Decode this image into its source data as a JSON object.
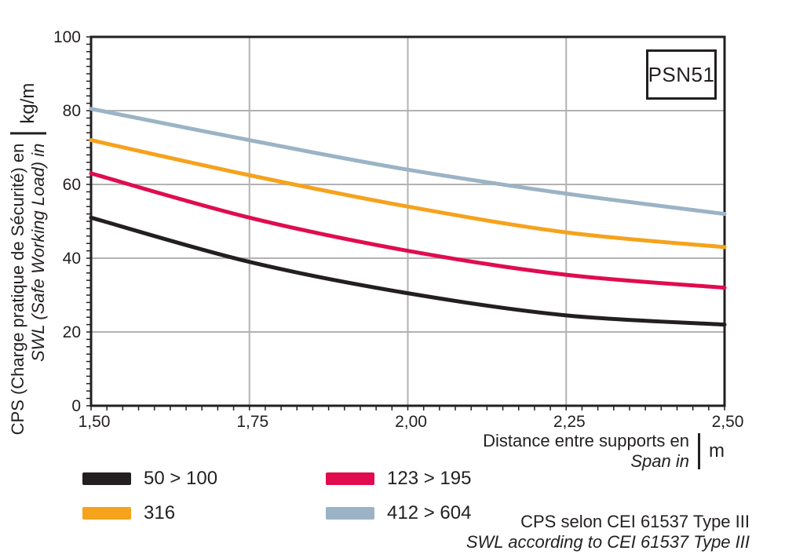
{
  "title_box": {
    "label": "PSN51"
  },
  "axis": {
    "y_label_fr": "CPS (Charge pratique de Sécurité) en",
    "y_label_en": "SWL (Safe Working Load) in",
    "y_unit": "kg/m",
    "x_label_fr": "Distance entre supports en",
    "x_label_en": "Span in",
    "x_unit": "m"
  },
  "footer": {
    "line_fr": "CPS selon CEI 61537 Type III",
    "line_en": "SWL according to CEI 61537 Type III"
  },
  "colors": {
    "axis": "#231f20",
    "grid": "#b2b2b2",
    "text": "#231f20",
    "background": "#ffffff"
  },
  "chart_data": {
    "type": "line",
    "title": "PSN51",
    "xlabel": "Distance entre supports en / Span in (m)",
    "ylabel": "CPS (Charge pratique de Sécurité) en / SWL (Safe Working Load) in (kg/m)",
    "x": [
      1.5,
      1.75,
      2.0,
      2.25,
      2.5
    ],
    "xlim": [
      1.5,
      2.5
    ],
    "ylim": [
      0,
      100
    ],
    "x_tick_labels": [
      "1,50",
      "1,75",
      "2,00",
      "2,25",
      "2,50"
    ],
    "y_tick_values": [
      0,
      20,
      40,
      60,
      80,
      100
    ],
    "x_minor_step": 0.025,
    "y_minor_step": 2,
    "grid_x": [
      1.75,
      2.0,
      2.25
    ],
    "grid_y": [
      20,
      40,
      60,
      80
    ],
    "grid_on": true,
    "legend_position": "bottom-left, 2 columns",
    "series": [
      {
        "name": "50 > 100",
        "color": "#231f20",
        "values": [
          51,
          39,
          30.5,
          24.5,
          22
        ]
      },
      {
        "name": "123 > 195",
        "color": "#e00c4f",
        "values": [
          63,
          51,
          42,
          35.5,
          32
        ]
      },
      {
        "name": "316",
        "color": "#f5a21d",
        "values": [
          72,
          62.5,
          54,
          47,
          43
        ]
      },
      {
        "name": "412 > 604",
        "color": "#9bb3c5",
        "values": [
          80.5,
          72,
          64,
          57.5,
          52
        ]
      }
    ],
    "legend_order": [
      "50 > 100",
      "123 > 195",
      "316",
      "412 > 604"
    ]
  }
}
